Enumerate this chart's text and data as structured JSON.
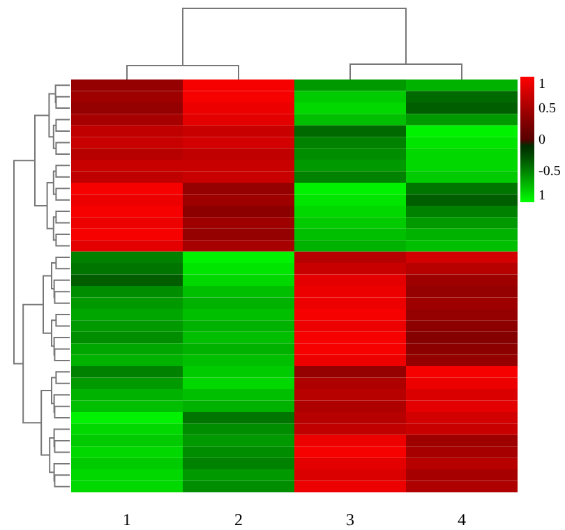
{
  "chart_data": {
    "type": "heatmap",
    "categories": [
      "1",
      "2",
      "3",
      "4"
    ],
    "y_categories": [
      null,
      null,
      null,
      null,
      null,
      null,
      null,
      null,
      null,
      null,
      null,
      null,
      null,
      null,
      null,
      null,
      null,
      null,
      null,
      null,
      null,
      null,
      null,
      null,
      null,
      null,
      null,
      null,
      null,
      null,
      null,
      null,
      null,
      null,
      null,
      null
    ],
    "cells": [
      [
        0.4,
        0.95,
        -0.6,
        -0.7
      ],
      [
        0.45,
        0.95,
        -0.8,
        -0.4
      ],
      [
        0.4,
        0.9,
        -0.85,
        -0.35
      ],
      [
        0.5,
        0.85,
        -0.75,
        -0.6
      ],
      [
        0.65,
        0.7,
        -0.4,
        -0.95
      ],
      [
        0.7,
        0.75,
        -0.5,
        -0.9
      ],
      [
        0.6,
        0.65,
        -0.55,
        -0.85
      ],
      [
        0.7,
        0.7,
        -0.6,
        -0.85
      ],
      [
        0.65,
        0.7,
        -0.5,
        -0.8
      ],
      [
        0.95,
        0.4,
        -0.95,
        -0.45
      ],
      [
        0.9,
        0.45,
        -0.9,
        -0.35
      ],
      [
        0.95,
        0.35,
        -0.85,
        -0.5
      ],
      [
        0.9,
        0.45,
        -0.8,
        -0.6
      ],
      [
        0.95,
        0.4,
        -0.75,
        -0.7
      ],
      [
        0.85,
        0.5,
        -0.7,
        -0.75
      ],
      [
        -0.5,
        -0.95,
        0.6,
        0.75
      ],
      [
        -0.45,
        -0.9,
        0.7,
        0.6
      ],
      [
        -0.35,
        -0.85,
        0.85,
        0.45
      ],
      [
        -0.55,
        -0.75,
        0.9,
        0.4
      ],
      [
        -0.6,
        -0.7,
        0.9,
        0.45
      ],
      [
        -0.65,
        -0.75,
        0.95,
        0.4
      ],
      [
        -0.6,
        -0.7,
        0.9,
        0.35
      ],
      [
        -0.55,
        -0.75,
        0.95,
        0.3
      ],
      [
        -0.65,
        -0.7,
        0.95,
        0.35
      ],
      [
        -0.7,
        -0.75,
        0.9,
        0.4
      ],
      [
        -0.5,
        -0.8,
        0.4,
        0.95
      ],
      [
        -0.6,
        -0.85,
        0.55,
        0.9
      ],
      [
        -0.7,
        -0.75,
        0.6,
        0.8
      ],
      [
        -0.75,
        -0.7,
        0.55,
        0.85
      ],
      [
        -0.95,
        -0.45,
        0.6,
        0.75
      ],
      [
        -0.85,
        -0.55,
        0.65,
        0.7
      ],
      [
        -0.8,
        -0.6,
        0.9,
        0.45
      ],
      [
        -0.85,
        -0.55,
        0.95,
        0.5
      ],
      [
        -0.8,
        -0.5,
        0.85,
        0.6
      ],
      [
        -0.85,
        -0.6,
        0.8,
        0.5
      ],
      [
        -0.85,
        -0.55,
        0.9,
        0.55
      ]
    ],
    "clim": [
      -1,
      1
    ],
    "cticks": [
      1,
      0.5,
      0,
      -0.5,
      {
        "value": -1,
        "label": "1"
      }
    ]
  }
}
